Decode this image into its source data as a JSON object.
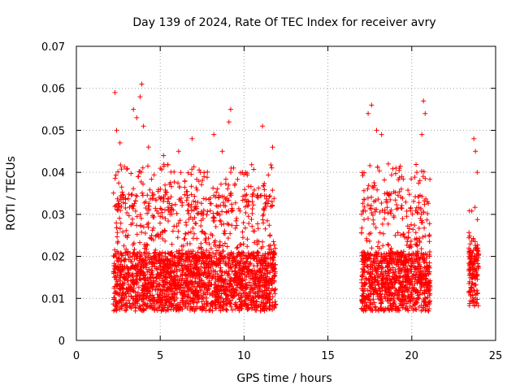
{
  "chart_data": {
    "type": "scatter",
    "title": "Day 139 of 2024, Rate Of TEC Index for receiver avry",
    "xlabel": "GPS time / hours",
    "ylabel": "ROTI / TECUs",
    "xlim": [
      0,
      25
    ],
    "ylim": [
      0,
      0.07
    ],
    "grid": true,
    "marker": "+",
    "color": "#ff0000",
    "x_ticks": [
      0,
      5,
      10,
      15,
      20,
      25
    ],
    "x_tick_labels": [
      "0",
      "5",
      "10",
      "15",
      "20",
      "25"
    ],
    "y_ticks": [
      0,
      0.01,
      0.02,
      0.03,
      0.04,
      0.05,
      0.06,
      0.07
    ],
    "y_tick_labels": [
      "0",
      "0.01",
      "0.02",
      "0.03",
      "0.04",
      "0.05",
      "0.06",
      "0.07"
    ],
    "data_windows": [
      {
        "start": 2.2,
        "end": 11.9,
        "y_min": 0.004,
        "y_typical_max": 0.035
      },
      {
        "start": 17.0,
        "end": 21.1,
        "y_min": 0.004,
        "y_typical_max": 0.035
      },
      {
        "start": 23.4,
        "end": 24.0,
        "y_min": 0.005,
        "y_typical_max": 0.025
      }
    ],
    "series": [
      {
        "name": "ROTI",
        "notable_points": [
          {
            "x": 2.3,
            "y": 0.059
          },
          {
            "x": 2.4,
            "y": 0.05
          },
          {
            "x": 2.6,
            "y": 0.047
          },
          {
            "x": 3.4,
            "y": 0.055
          },
          {
            "x": 3.6,
            "y": 0.053
          },
          {
            "x": 3.9,
            "y": 0.061
          },
          {
            "x": 3.8,
            "y": 0.058
          },
          {
            "x": 4.0,
            "y": 0.051
          },
          {
            "x": 4.3,
            "y": 0.046
          },
          {
            "x": 5.2,
            "y": 0.044
          },
          {
            "x": 6.1,
            "y": 0.045
          },
          {
            "x": 6.9,
            "y": 0.048
          },
          {
            "x": 7.4,
            "y": 0.04
          },
          {
            "x": 8.2,
            "y": 0.049
          },
          {
            "x": 8.7,
            "y": 0.045
          },
          {
            "x": 9.2,
            "y": 0.055
          },
          {
            "x": 9.1,
            "y": 0.052
          },
          {
            "x": 9.9,
            "y": 0.04
          },
          {
            "x": 11.1,
            "y": 0.051
          },
          {
            "x": 11.7,
            "y": 0.046
          },
          {
            "x": 17.4,
            "y": 0.054
          },
          {
            "x": 17.6,
            "y": 0.056
          },
          {
            "x": 17.9,
            "y": 0.05
          },
          {
            "x": 18.2,
            "y": 0.049
          },
          {
            "x": 18.6,
            "y": 0.042
          },
          {
            "x": 19.4,
            "y": 0.039
          },
          {
            "x": 20.7,
            "y": 0.057
          },
          {
            "x": 20.8,
            "y": 0.054
          },
          {
            "x": 20.6,
            "y": 0.049
          },
          {
            "x": 20.3,
            "y": 0.04
          },
          {
            "x": 23.7,
            "y": 0.048
          },
          {
            "x": 23.8,
            "y": 0.045
          },
          {
            "x": 23.9,
            "y": 0.04
          }
        ]
      }
    ]
  }
}
